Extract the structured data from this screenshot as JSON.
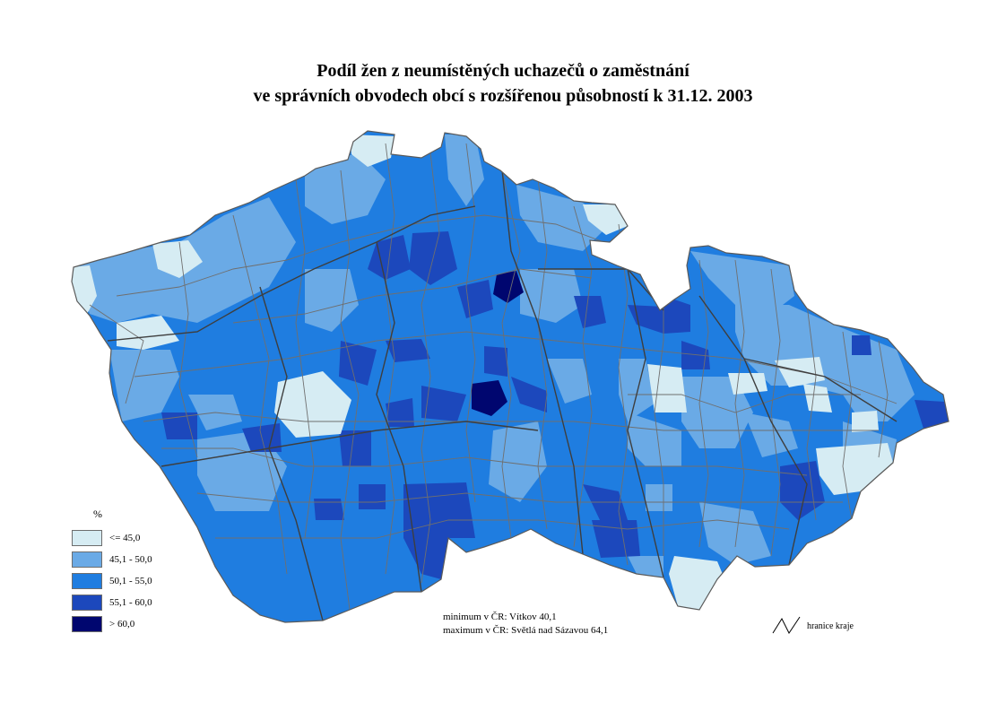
{
  "title": {
    "line1": "Podíl žen z neumístěných uchazečů o zaměstnání",
    "line2": "ve správních obvodech obcí s rozšířenou působností k 31.12. 2003"
  },
  "legend": {
    "unit": "%",
    "classes": [
      {
        "label": "<= 45,0",
        "color": "#d6ecf3"
      },
      {
        "label": "45,1 - 50,0",
        "color": "#6aaae6"
      },
      {
        "label": "50,1 - 55,0",
        "color": "#1f7de0"
      },
      {
        "label": "55,1 - 60,0",
        "color": "#1c48bc"
      },
      {
        "label": "> 60,0",
        "color": "#00066f"
      }
    ]
  },
  "notes": {
    "min": "minimum v ČR: Vítkov 40,1",
    "max": "maximum v ČR: Světlá nad Sázavou 64,1"
  },
  "border_key": {
    "label": "hranice kraje",
    "icon": "boundary-line-icon"
  }
}
